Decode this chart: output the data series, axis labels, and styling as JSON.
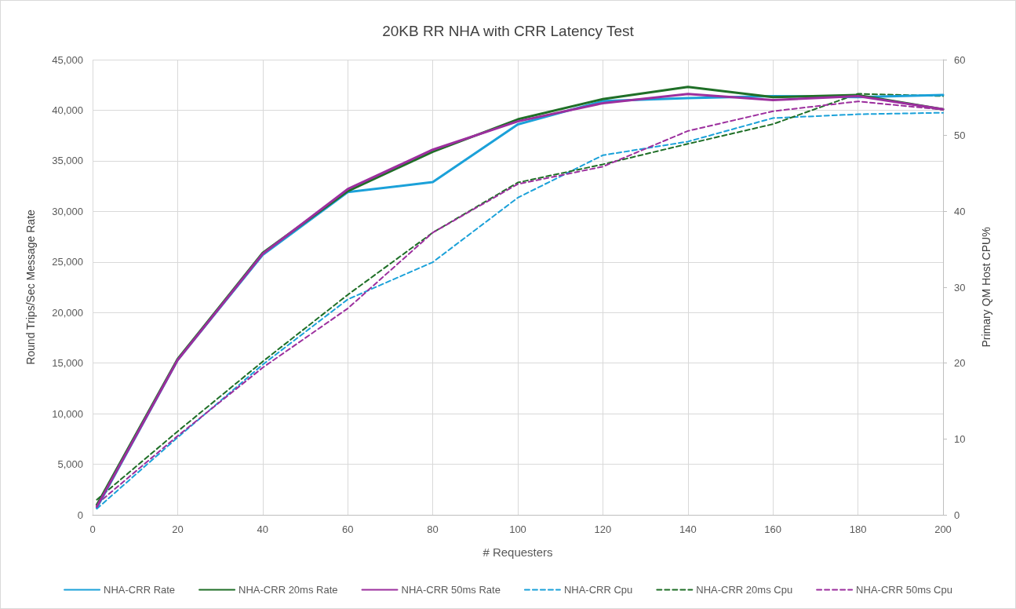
{
  "chart_data": {
    "type": "line",
    "title": "20KB RR NHA with CRR Latency Test",
    "xlabel": "# Requesters",
    "ylabel": "Round Trips/Sec Message Rate",
    "y2label": "Primary QM Host CPU%",
    "x": [
      1,
      20,
      40,
      60,
      80,
      100,
      120,
      140,
      160,
      180,
      200
    ],
    "xlim": [
      0,
      200
    ],
    "xticks": [
      0,
      20,
      40,
      60,
      80,
      100,
      120,
      140,
      160,
      180,
      200
    ],
    "ylim": [
      0,
      45000
    ],
    "yticks": [
      0,
      {
        "value": 5000,
        "label": "5,000"
      },
      {
        "value": 10000,
        "label": "10,000"
      },
      {
        "value": 15000,
        "label": "15,000"
      },
      {
        "value": 20000,
        "label": "20,000"
      },
      {
        "value": 25000,
        "label": "25,000"
      },
      {
        "value": 30000,
        "label": "30,000"
      },
      {
        "value": 35000,
        "label": "35,000"
      },
      {
        "value": 40000,
        "label": "40,000"
      },
      {
        "value": 45000,
        "label": "45,000"
      }
    ],
    "y2lim": [
      0,
      60
    ],
    "y2ticks": [
      0,
      10,
      20,
      30,
      40,
      50,
      60
    ],
    "grid": true,
    "legend": "bottom",
    "marker": "none",
    "series": [
      {
        "name": "NHA-CRR Rate",
        "color": "#1ba1d9",
        "line_style": "solid",
        "values": [
          700,
          15300,
          25700,
          31900,
          32900,
          38600,
          40900,
          41200,
          41400,
          41300,
          41500
        ]
      },
      {
        "name": "NHA-CRR 20ms Rate",
        "color": "#1f6f27",
        "line_style": "solid",
        "values": [
          1000,
          15400,
          25900,
          32000,
          35900,
          39100,
          41100,
          42300,
          41300,
          41500,
          40100
        ]
      },
      {
        "name": "NHA-CRR 50ms Rate",
        "color": "#9c2f9e",
        "line_style": "solid",
        "values": [
          800,
          15300,
          25800,
          32200,
          36100,
          38900,
          40700,
          41600,
          41000,
          41400,
          40100
        ]
      },
      {
        "name": "NHA-CRR Cpu",
        "color": "#1ba1d9",
        "line_style": "dashed",
        "axis": "y2",
        "values": [
          0.8,
          10.2,
          19.8,
          28.4,
          33.3,
          41.8,
          47.4,
          49.2,
          52.3,
          52.8,
          53.0
        ]
      },
      {
        "name": "NHA-CRR 20ms Cpu",
        "color": "#1f6f27",
        "line_style": "dashed",
        "axis": "y2",
        "values": [
          2.0,
          11.0,
          20.2,
          29.0,
          37.2,
          43.8,
          46.2,
          48.9,
          51.5,
          55.5,
          55.2
        ]
      },
      {
        "name": "NHA-CRR 50ms Cpu",
        "color": "#9c2f9e",
        "line_style": "dashed",
        "axis": "y2",
        "values": [
          1.4,
          10.4,
          19.4,
          27.2,
          37.2,
          43.6,
          45.9,
          50.6,
          53.2,
          54.5,
          53.4
        ]
      }
    ]
  }
}
